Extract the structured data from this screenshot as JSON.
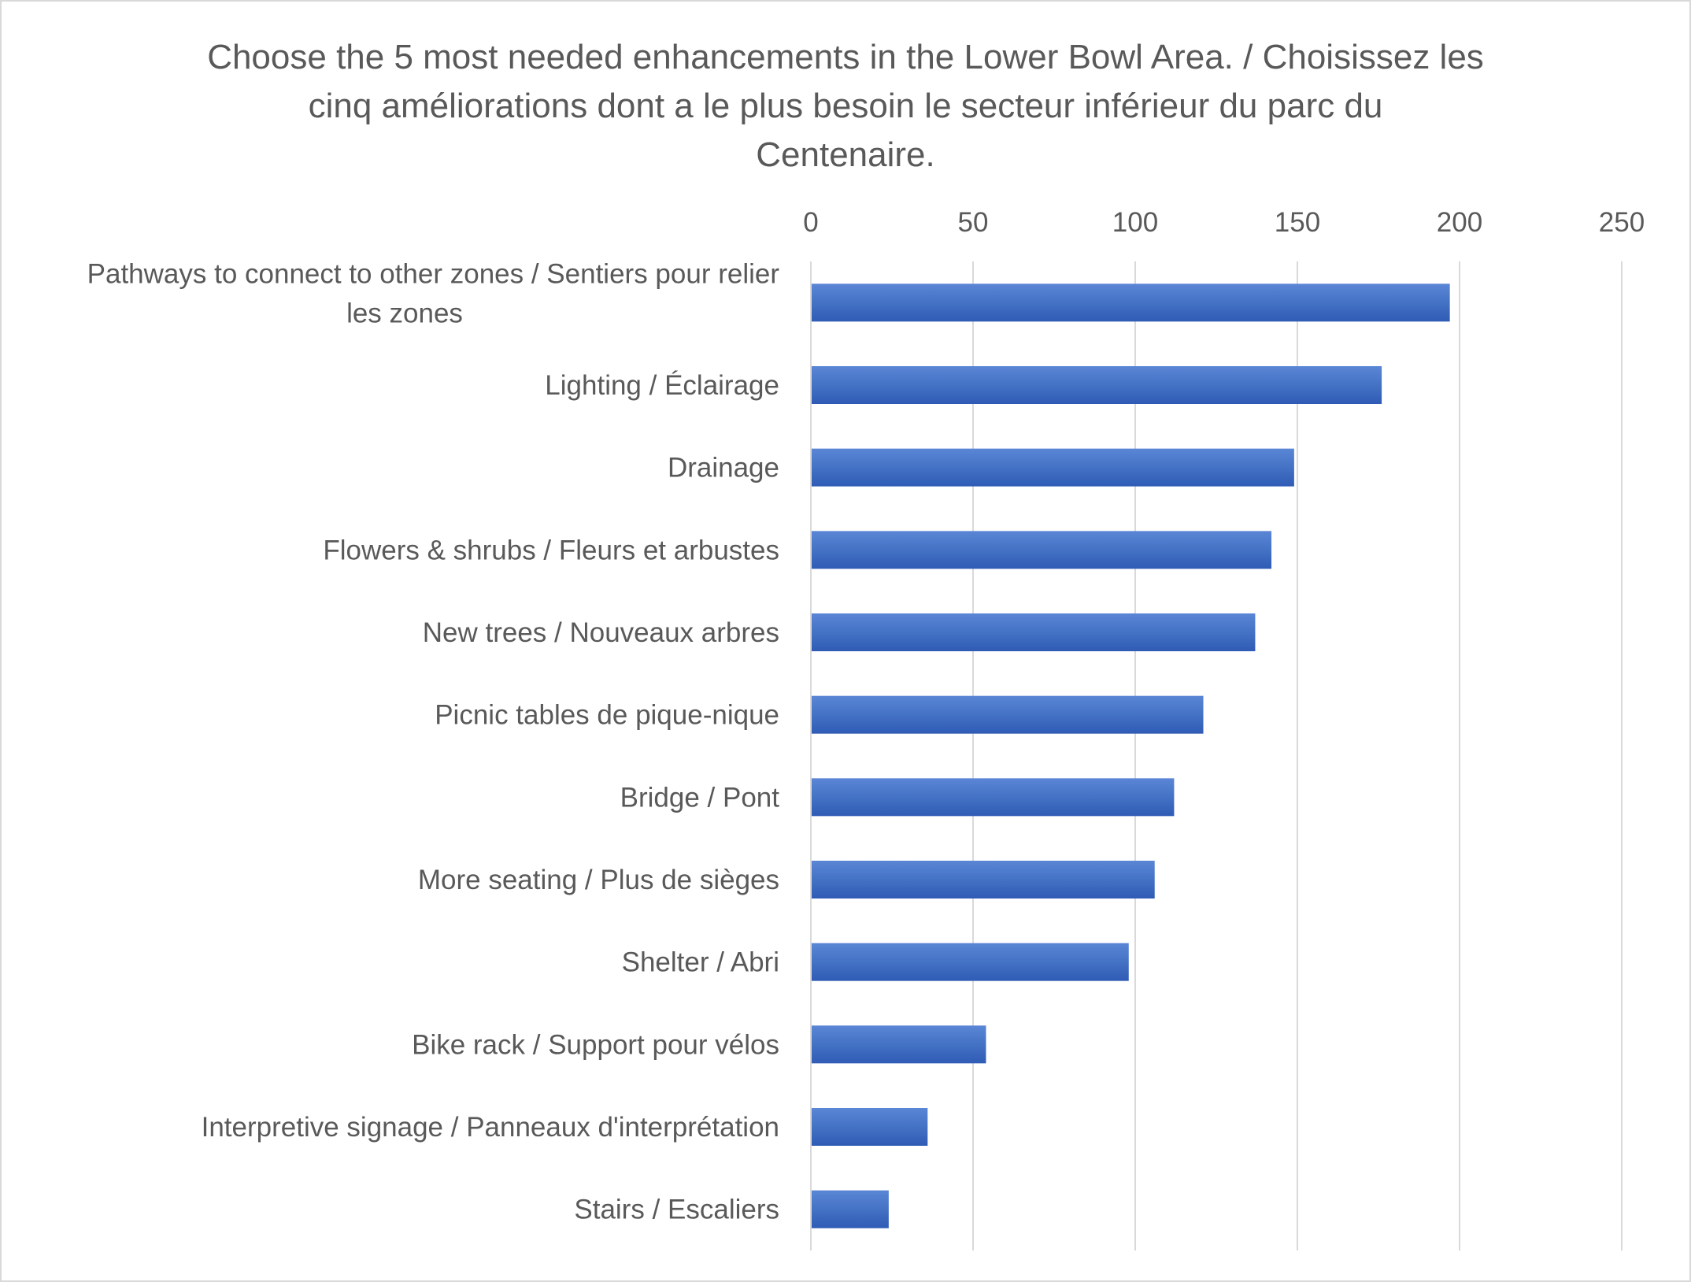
{
  "chart_data": {
    "type": "bar",
    "orientation": "horizontal",
    "title": "Choose the 5 most needed enhancements in the Lower Bowl Area. / Choisissez les cinq améliorations dont a le plus besoin le secteur inférieur du parc du Centenaire.",
    "title_lines": [
      "Choose the 5 most needed enhancements in the Lower Bowl Area. / Choisissez les",
      "cinq améliorations dont a le plus besoin le secteur inférieur du parc du",
      "Centenaire."
    ],
    "categories": [
      "Pathways to connect to other zones / Sentiers pour relier les zones",
      "Lighting / Éclairage",
      "Drainage",
      "Flowers & shrubs / Fleurs et arbustes",
      "New trees / Nouveaux arbres",
      "Picnic tables de pique-nique",
      "Bridge / Pont",
      "More seating / Plus de sièges",
      "Shelter / Abri",
      "Bike rack / Support pour vélos",
      "Interpretive signage / Panneaux d'interprétation",
      "Stairs / Escaliers"
    ],
    "category_label_lines": [
      [
        "Pathways to connect to other zones / Sentiers pour relier",
        "les zones"
      ],
      [
        "Lighting / Éclairage"
      ],
      [
        "Drainage"
      ],
      [
        "Flowers & shrubs / Fleurs et arbustes"
      ],
      [
        "New trees / Nouveaux arbres"
      ],
      [
        "Picnic tables de pique-nique"
      ],
      [
        "Bridge / Pont"
      ],
      [
        "More seating / Plus de sièges"
      ],
      [
        "Shelter / Abri"
      ],
      [
        "Bike rack / Support pour vélos"
      ],
      [
        "Interpretive signage / Panneaux d'interprétation"
      ],
      [
        "Stairs / Escaliers"
      ]
    ],
    "values": [
      197,
      176,
      149,
      142,
      137,
      121,
      112,
      106,
      98,
      54,
      36,
      24
    ],
    "xlim": [
      0,
      250
    ],
    "x_ticks": [
      0,
      50,
      100,
      150,
      200,
      250
    ],
    "x_tick_labels": [
      "0",
      "50",
      "100",
      "150",
      "200",
      "250"
    ],
    "x_axis_position": "top",
    "grid": true,
    "legend": "none",
    "bar_color": "#4472c4",
    "bar_color_light": "#5b86d6",
    "bar_color_dark": "#2f5bb5",
    "gridline_color": "#d9d9d9",
    "text_color": "#595959"
  }
}
